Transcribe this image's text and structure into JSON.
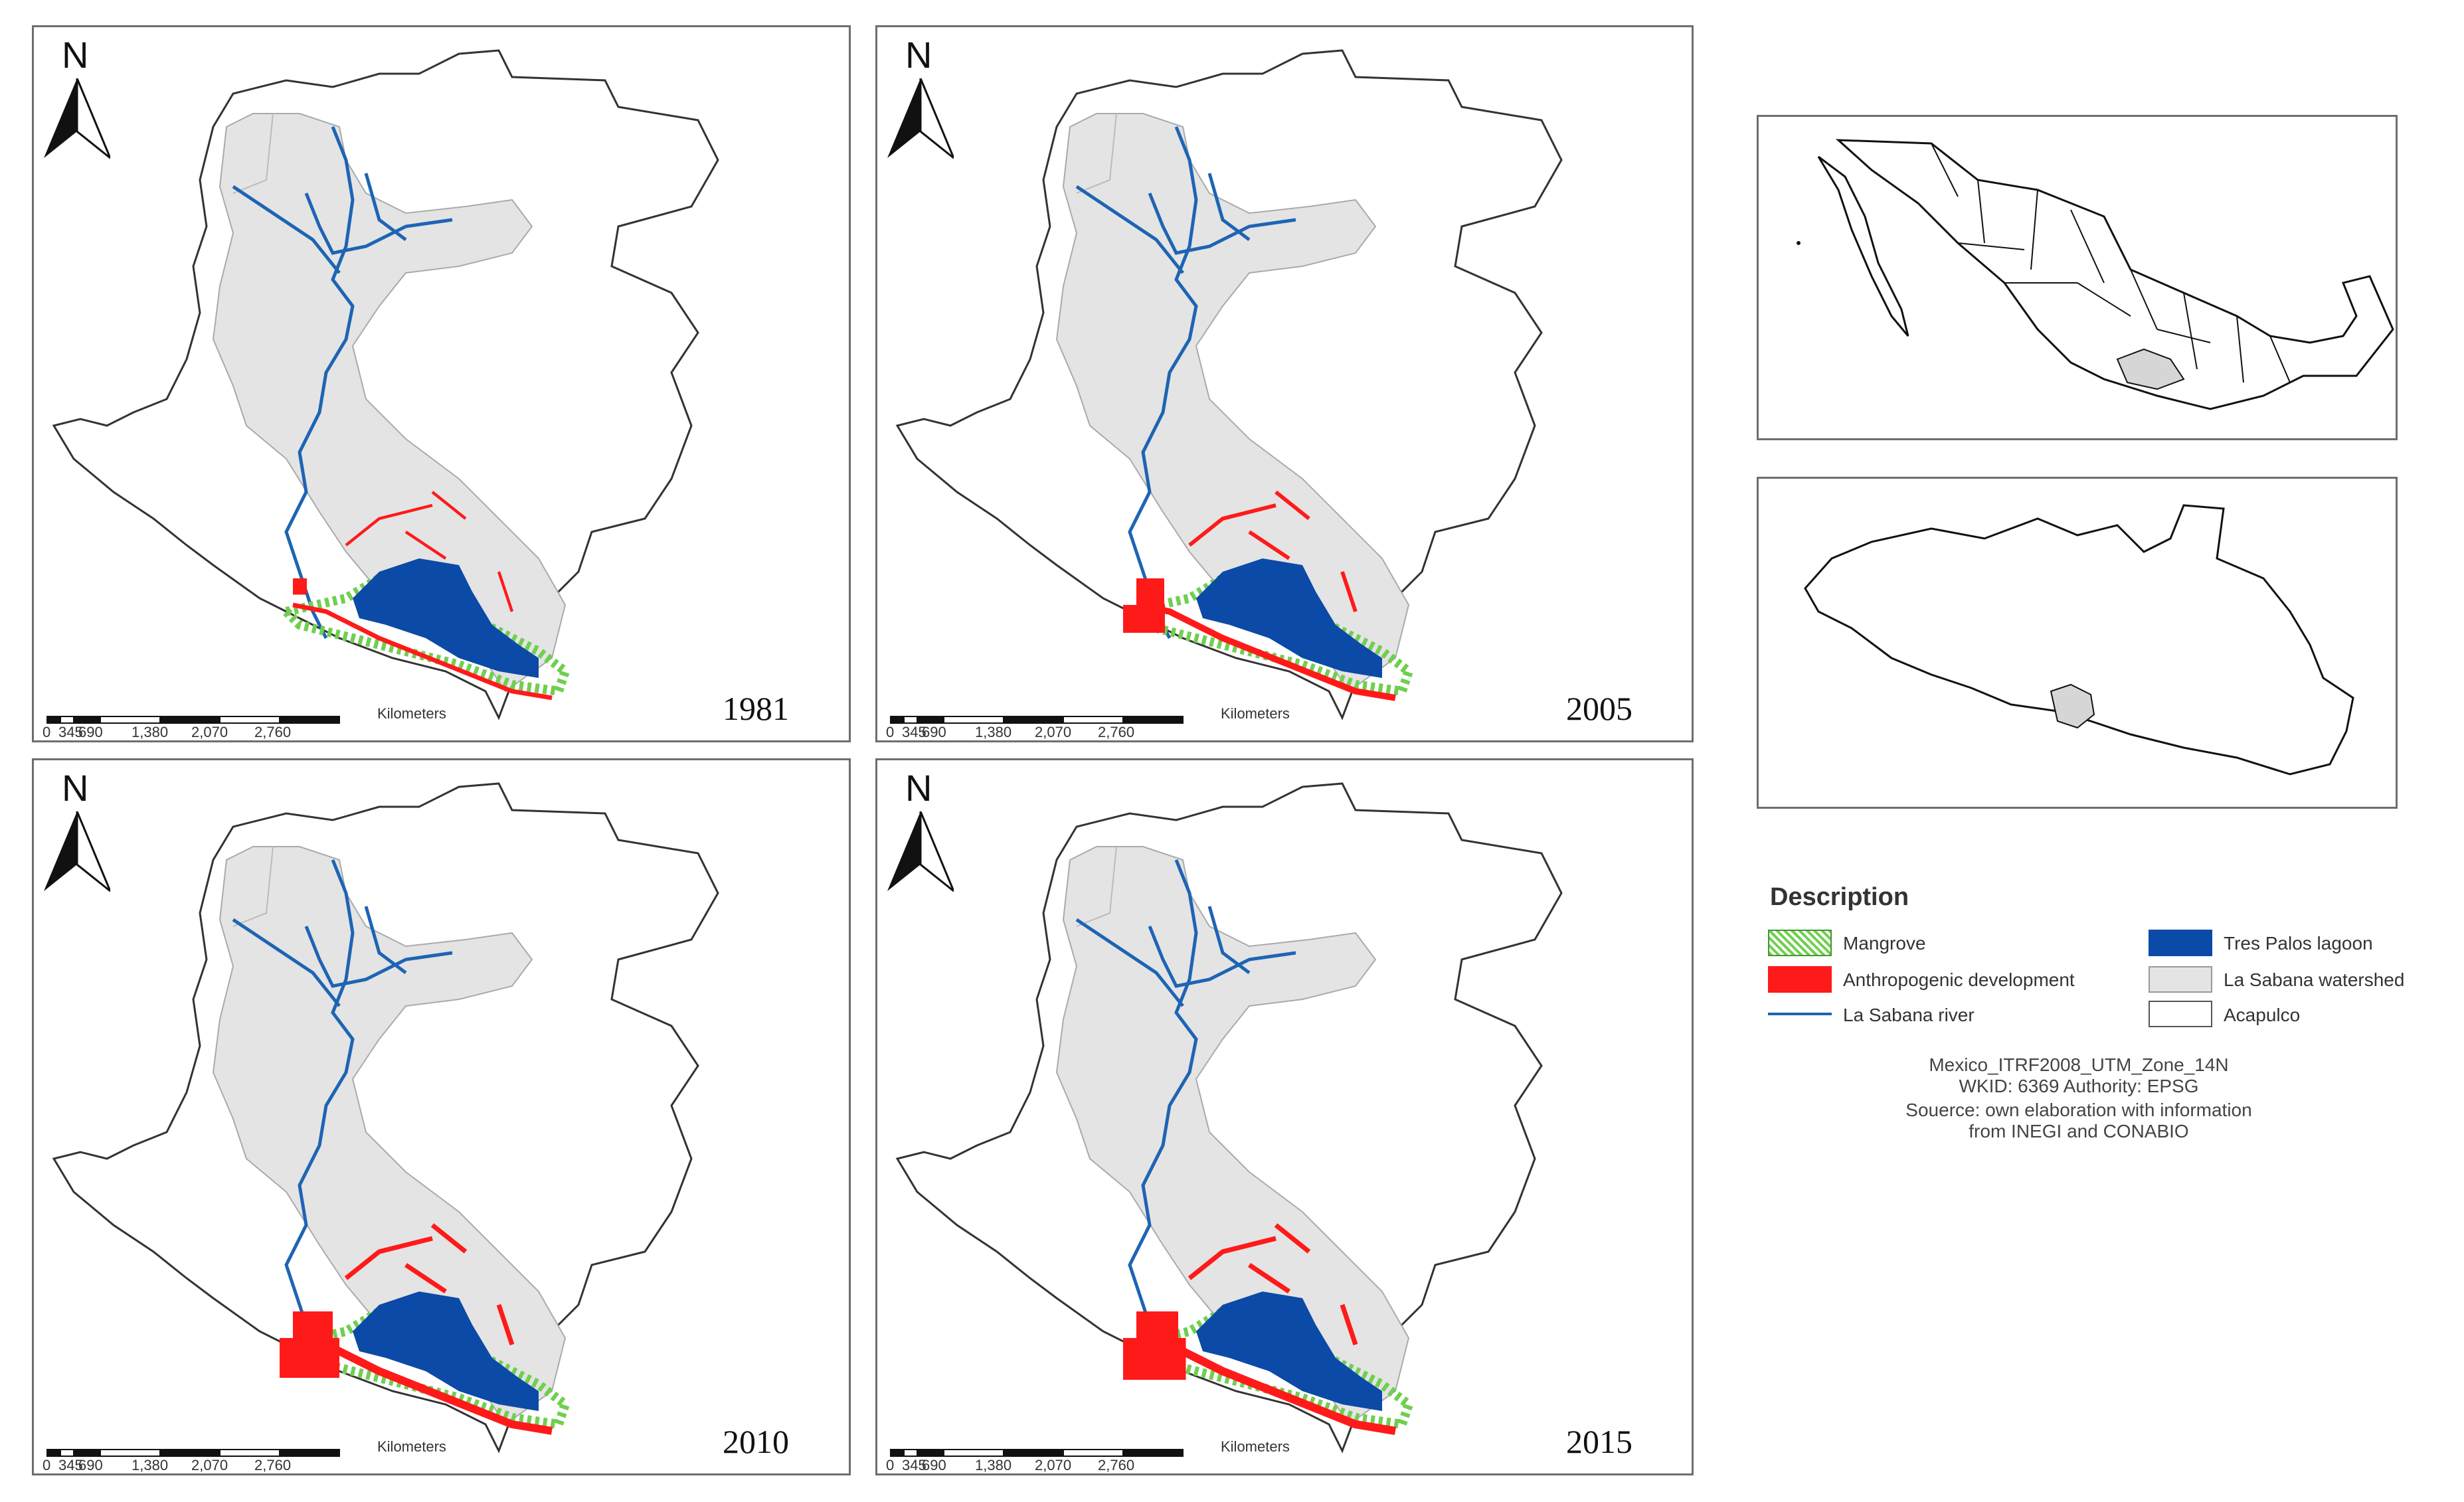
{
  "maps": [
    {
      "year": "1981"
    },
    {
      "year": "2005"
    },
    {
      "year": "2010"
    },
    {
      "year": "2015"
    }
  ],
  "north_label": "N",
  "scalebar": {
    "unit": "Kilometers",
    "ticks": [
      "0",
      "345",
      "690",
      "1,380",
      "2,070",
      "2,760"
    ]
  },
  "legend": {
    "title": "Description",
    "items": [
      {
        "label": "Mangrove",
        "color": "#6fcf4f"
      },
      {
        "label": "Tres Palos lagoon",
        "color": "#0b4aa6"
      },
      {
        "label": "Anthropogenic development",
        "color": "#ff1a1a"
      },
      {
        "label": "La Sabana watershed",
        "color": "#e4e4e4"
      },
      {
        "label": "La Sabana river",
        "color": "#1e64b4"
      },
      {
        "label": "Acapulco",
        "color": "#ffffff"
      }
    ]
  },
  "credits": {
    "projection": "Mexico_ITRF2008_UTM_Zone_14N",
    "wkid": "WKID: 6369 Authority: EPSG",
    "source_line1": "Souerce: own elaboration with information",
    "source_line2": "from INEGI and CONABIO"
  },
  "inset_highlight_color": "#d6d6d6"
}
